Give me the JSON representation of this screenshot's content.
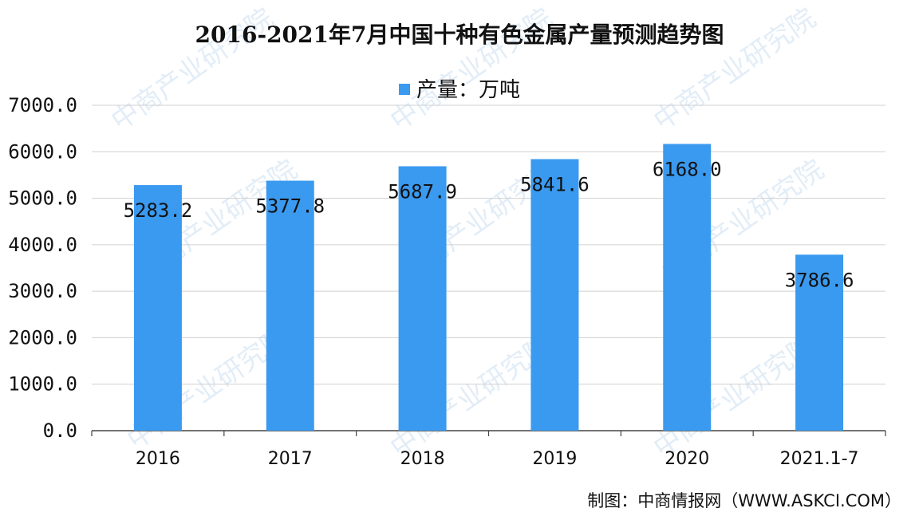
{
  "watermark_text": "中商产业研究院",
  "source_text": "制图：中商情报网（WWW.ASKCI.COM）",
  "chart_data": {
    "type": "bar",
    "title": "2016-2021年7月中国十种有色金属产量预测趋势图",
    "legend_label": "产量：万吨",
    "legend_position": "top",
    "categories": [
      "2016",
      "2017",
      "2018",
      "2019",
      "2020",
      "2021.1-7"
    ],
    "values": [
      5283.2,
      5377.8,
      5687.9,
      5841.6,
      6168.0,
      3786.6
    ],
    "value_labels": [
      "5283.2",
      "5377.8",
      "5687.9",
      "5841.6",
      "6168.0",
      "3786.6"
    ],
    "yticks": [
      "0.0",
      "1000.0",
      "2000.0",
      "3000.0",
      "4000.0",
      "5000.0",
      "6000.0",
      "7000.0"
    ],
    "ylim": [
      0,
      7000
    ],
    "grid": true,
    "bar_color": "#3a9af0"
  }
}
